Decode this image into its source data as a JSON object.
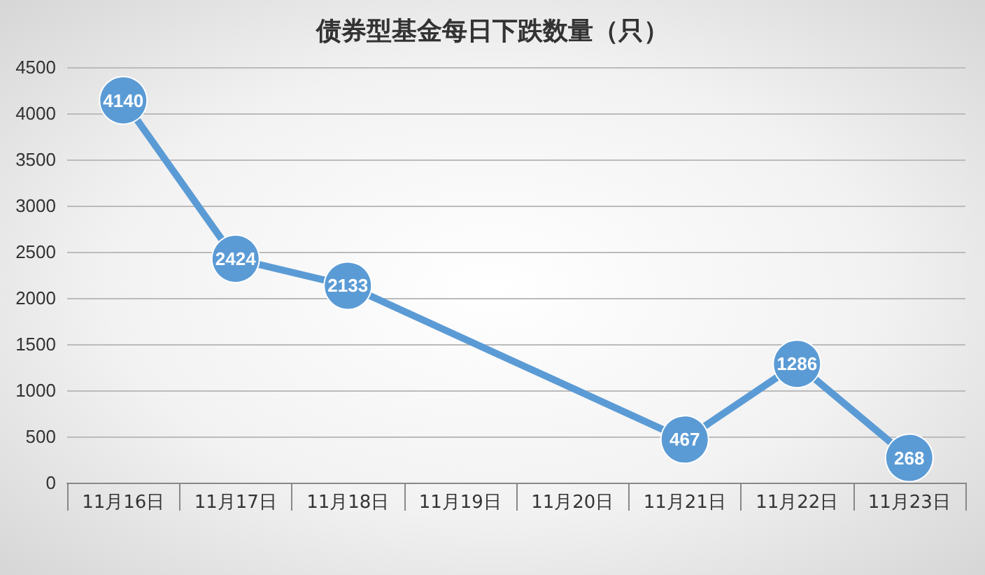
{
  "chart_data": {
    "type": "line",
    "title": "债券型基金每日下跌数量（只）",
    "categories": [
      "11月16日",
      "11月17日",
      "11月18日",
      "11月19日",
      "11月20日",
      "11月21日",
      "11月22日",
      "11月23日"
    ],
    "series": [
      {
        "color": "#5b9bd5",
        "values": [
          4140,
          2424,
          2133,
          null,
          null,
          467,
          1286,
          268
        ]
      }
    ],
    "ylim": [
      0,
      4500
    ],
    "yticks": [
      0,
      500,
      1000,
      1500,
      2000,
      2500,
      3000,
      3500,
      4000,
      4500
    ],
    "grid": "y",
    "marker": "circle",
    "line_style": "solid",
    "data_labels": true
  }
}
